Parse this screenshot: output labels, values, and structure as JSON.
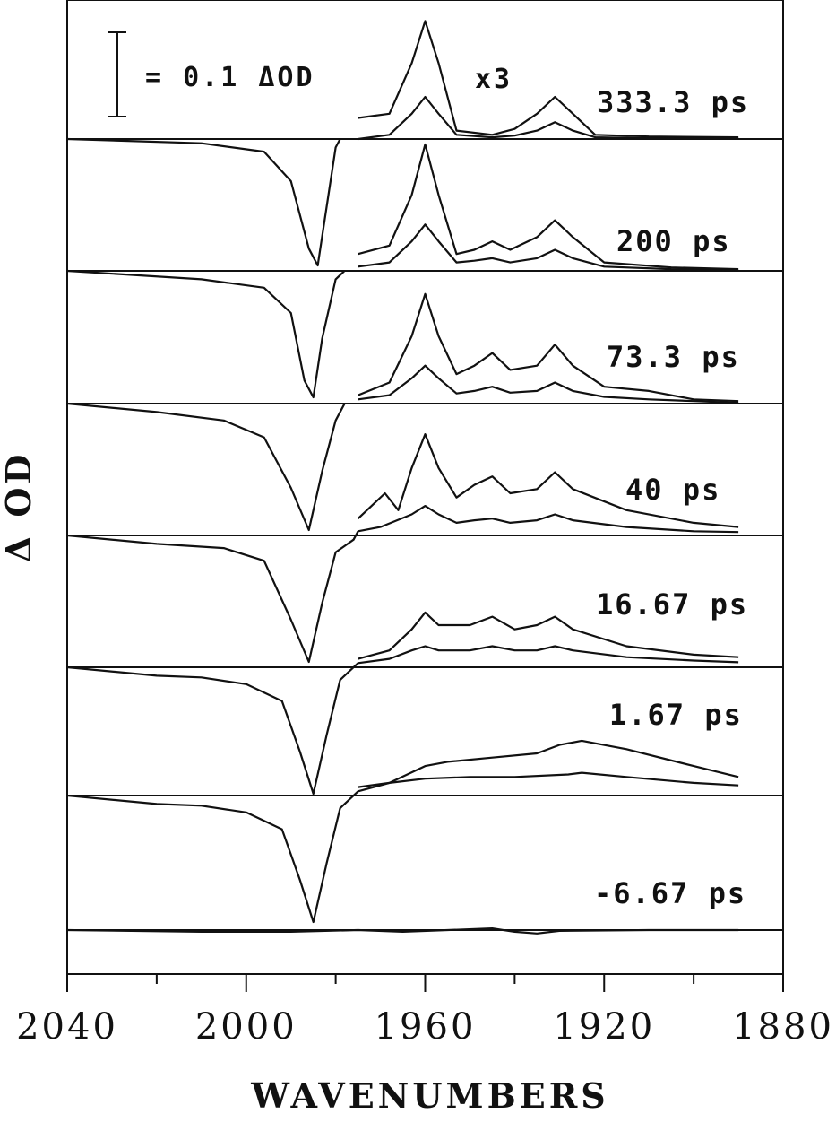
{
  "chart_data": {
    "type": "line",
    "title": "",
    "xlabel": "WAVENUMBERS",
    "ylabel": "Δ OD",
    "xlim": [
      2040,
      1880
    ],
    "x_reversed": true,
    "xticks": [
      2040,
      2000,
      1960,
      1920,
      1880
    ],
    "xtick_labels": [
      "2040",
      "2000",
      "1960",
      "1920",
      "1880"
    ],
    "scale_bar": {
      "label": "= 0.1 ΔOD",
      "value": 0.1
    },
    "magnification_label": "x3",
    "grid": false,
    "series": [
      {
        "name": "333.3 ps",
        "bleach": [
          [
            2040,
            0
          ],
          [
            2010,
            0
          ],
          [
            1996,
            -0.01
          ],
          [
            1990,
            -0.05
          ],
          [
            1986,
            -0.13
          ],
          [
            1984,
            -0.15
          ],
          [
            1982,
            -0.08
          ],
          [
            1980,
            -0.01
          ],
          [
            1979,
            0
          ]
        ],
        "transient": [
          [
            1975,
            0
          ],
          [
            1968,
            0.005
          ],
          [
            1963,
            0.03
          ],
          [
            1960,
            0.05
          ],
          [
            1957,
            0.03
          ],
          [
            1953,
            0.005
          ],
          [
            1945,
            0.002
          ],
          [
            1940,
            0.004
          ],
          [
            1935,
            0.01
          ],
          [
            1931,
            0.02
          ],
          [
            1927,
            0.01
          ],
          [
            1922,
            0.002
          ],
          [
            1910,
            0.001
          ],
          [
            1890,
            0.001
          ]
        ],
        "transient_x3": [
          [
            1975,
            0.025
          ],
          [
            1968,
            0.03
          ],
          [
            1963,
            0.09
          ],
          [
            1960,
            0.14
          ],
          [
            1957,
            0.09
          ],
          [
            1953,
            0.01
          ],
          [
            1945,
            0.005
          ],
          [
            1940,
            0.012
          ],
          [
            1935,
            0.03
          ],
          [
            1931,
            0.05
          ],
          [
            1927,
            0.03
          ],
          [
            1922,
            0.005
          ],
          [
            1910,
            0.003
          ],
          [
            1890,
            0.002
          ]
        ]
      },
      {
        "name": "200 ps",
        "bleach": [
          [
            2040,
            0
          ],
          [
            2010,
            -0.005
          ],
          [
            1996,
            -0.015
          ],
          [
            1990,
            -0.05
          ],
          [
            1986,
            -0.13
          ],
          [
            1984,
            -0.15
          ],
          [
            1982,
            -0.08
          ],
          [
            1980,
            -0.01
          ],
          [
            1979,
            0
          ]
        ],
        "transient": [
          [
            1975,
            0.005
          ],
          [
            1968,
            0.01
          ],
          [
            1963,
            0.035
          ],
          [
            1960,
            0.055
          ],
          [
            1957,
            0.035
          ],
          [
            1953,
            0.01
          ],
          [
            1949,
            0.012
          ],
          [
            1945,
            0.015
          ],
          [
            1941,
            0.01
          ],
          [
            1935,
            0.015
          ],
          [
            1931,
            0.025
          ],
          [
            1927,
            0.015
          ],
          [
            1920,
            0.005
          ],
          [
            1905,
            0.002
          ],
          [
            1890,
            0.001
          ]
        ],
        "transient_x3": [
          [
            1975,
            0.02
          ],
          [
            1968,
            0.03
          ],
          [
            1963,
            0.09
          ],
          [
            1960,
            0.15
          ],
          [
            1957,
            0.09
          ],
          [
            1953,
            0.02
          ],
          [
            1949,
            0.025
          ],
          [
            1945,
            0.035
          ],
          [
            1941,
            0.025
          ],
          [
            1935,
            0.04
          ],
          [
            1931,
            0.06
          ],
          [
            1927,
            0.04
          ],
          [
            1920,
            0.01
          ],
          [
            1905,
            0.004
          ],
          [
            1890,
            0.002
          ]
        ]
      },
      {
        "name": "73.3 ps",
        "bleach": [
          [
            2040,
            0
          ],
          [
            2010,
            -0.01
          ],
          [
            1996,
            -0.02
          ],
          [
            1990,
            -0.05
          ],
          [
            1987,
            -0.13
          ],
          [
            1985,
            -0.15
          ],
          [
            1983,
            -0.08
          ],
          [
            1980,
            -0.01
          ],
          [
            1978,
            0
          ]
        ],
        "transient": [
          [
            1975,
            0.005
          ],
          [
            1968,
            0.01
          ],
          [
            1963,
            0.03
          ],
          [
            1960,
            0.045
          ],
          [
            1957,
            0.03
          ],
          [
            1953,
            0.012
          ],
          [
            1949,
            0.015
          ],
          [
            1945,
            0.02
          ],
          [
            1941,
            0.013
          ],
          [
            1935,
            0.015
          ],
          [
            1931,
            0.025
          ],
          [
            1927,
            0.015
          ],
          [
            1920,
            0.008
          ],
          [
            1910,
            0.005
          ],
          [
            1900,
            0.003
          ],
          [
            1890,
            0.001
          ]
        ],
        "transient_x3": [
          [
            1975,
            0.01
          ],
          [
            1968,
            0.025
          ],
          [
            1963,
            0.08
          ],
          [
            1960,
            0.13
          ],
          [
            1957,
            0.08
          ],
          [
            1953,
            0.035
          ],
          [
            1949,
            0.045
          ],
          [
            1945,
            0.06
          ],
          [
            1941,
            0.04
          ],
          [
            1935,
            0.045
          ],
          [
            1931,
            0.07
          ],
          [
            1927,
            0.045
          ],
          [
            1920,
            0.02
          ],
          [
            1910,
            0.015
          ],
          [
            1900,
            0.005
          ],
          [
            1890,
            0.003
          ]
        ]
      },
      {
        "name": "40 ps",
        "bleach": [
          [
            2040,
            0
          ],
          [
            2020,
            -0.01
          ],
          [
            2005,
            -0.02
          ],
          [
            1996,
            -0.04
          ],
          [
            1990,
            -0.1
          ],
          [
            1986,
            -0.15
          ],
          [
            1983,
            -0.08
          ],
          [
            1980,
            -0.02
          ],
          [
            1978,
            0
          ]
        ],
        "transient": [
          [
            1975,
            0.005
          ],
          [
            1970,
            0.01
          ],
          [
            1963,
            0.025
          ],
          [
            1960,
            0.035
          ],
          [
            1957,
            0.025
          ],
          [
            1953,
            0.015
          ],
          [
            1949,
            0.018
          ],
          [
            1945,
            0.02
          ],
          [
            1941,
            0.015
          ],
          [
            1935,
            0.018
          ],
          [
            1931,
            0.025
          ],
          [
            1927,
            0.018
          ],
          [
            1915,
            0.01
          ],
          [
            1900,
            0.005
          ],
          [
            1890,
            0.004
          ]
        ],
        "transient_x3": [
          [
            1975,
            0.02
          ],
          [
            1973,
            0.03
          ],
          [
            1969,
            0.05
          ],
          [
            1966,
            0.03
          ],
          [
            1963,
            0.08
          ],
          [
            1960,
            0.12
          ],
          [
            1957,
            0.08
          ],
          [
            1953,
            0.045
          ],
          [
            1949,
            0.06
          ],
          [
            1945,
            0.07
          ],
          [
            1941,
            0.05
          ],
          [
            1935,
            0.055
          ],
          [
            1931,
            0.075
          ],
          [
            1927,
            0.055
          ],
          [
            1915,
            0.03
          ],
          [
            1900,
            0.015
          ],
          [
            1890,
            0.01
          ]
        ]
      },
      {
        "name": "16.67 ps",
        "bleach": [
          [
            2040,
            0
          ],
          [
            2020,
            -0.01
          ],
          [
            2005,
            -0.015
          ],
          [
            1996,
            -0.03
          ],
          [
            1990,
            -0.1
          ],
          [
            1986,
            -0.15
          ],
          [
            1983,
            -0.08
          ],
          [
            1980,
            -0.02
          ],
          [
            1976,
            -0.005
          ],
          [
            1975,
            0.005
          ]
        ],
        "transient": [
          [
            1975,
            0.005
          ],
          [
            1968,
            0.01
          ],
          [
            1963,
            0.02
          ],
          [
            1960,
            0.025
          ],
          [
            1957,
            0.02
          ],
          [
            1950,
            0.02
          ],
          [
            1945,
            0.025
          ],
          [
            1940,
            0.02
          ],
          [
            1935,
            0.02
          ],
          [
            1931,
            0.025
          ],
          [
            1927,
            0.02
          ],
          [
            1915,
            0.012
          ],
          [
            1900,
            0.008
          ],
          [
            1890,
            0.006
          ]
        ],
        "transient_x3": [
          [
            1975,
            0.01
          ],
          [
            1968,
            0.02
          ],
          [
            1963,
            0.045
          ],
          [
            1960,
            0.065
          ],
          [
            1957,
            0.05
          ],
          [
            1950,
            0.05
          ],
          [
            1945,
            0.06
          ],
          [
            1940,
            0.045
          ],
          [
            1935,
            0.05
          ],
          [
            1931,
            0.06
          ],
          [
            1927,
            0.045
          ],
          [
            1915,
            0.025
          ],
          [
            1900,
            0.015
          ],
          [
            1890,
            0.012
          ]
        ]
      },
      {
        "name": "1.67 ps",
        "bleach": [
          [
            2040,
            0
          ],
          [
            2020,
            -0.01
          ],
          [
            2010,
            -0.012
          ],
          [
            2000,
            -0.02
          ],
          [
            1992,
            -0.04
          ],
          [
            1988,
            -0.1
          ],
          [
            1985,
            -0.15
          ],
          [
            1982,
            -0.08
          ],
          [
            1979,
            -0.015
          ],
          [
            1975,
            0.005
          ]
        ],
        "transient": [
          [
            1975,
            0.01
          ],
          [
            1968,
            0.015
          ],
          [
            1960,
            0.02
          ],
          [
            1950,
            0.022
          ],
          [
            1940,
            0.022
          ],
          [
            1928,
            0.025
          ],
          [
            1925,
            0.027
          ],
          [
            1915,
            0.022
          ],
          [
            1900,
            0.015
          ],
          [
            1890,
            0.012
          ]
        ],
        "transient_x3": [
          [
            1975,
            0.005
          ],
          [
            1968,
            0.015
          ],
          [
            1960,
            0.035
          ],
          [
            1955,
            0.04
          ],
          [
            1945,
            0.045
          ],
          [
            1935,
            0.05
          ],
          [
            1930,
            0.06
          ],
          [
            1925,
            0.065
          ],
          [
            1915,
            0.055
          ],
          [
            1900,
            0.035
          ],
          [
            1890,
            0.022
          ]
        ]
      },
      {
        "name": "-6.67 ps",
        "baseline_signal": [
          [
            2040,
            0
          ],
          [
            2010,
            -0.002
          ],
          [
            1990,
            -0.002
          ],
          [
            1975,
            0
          ],
          [
            1965,
            -0.002
          ],
          [
            1955,
            0
          ],
          [
            1945,
            0.002
          ],
          [
            1940,
            -0.002
          ],
          [
            1935,
            -0.004
          ],
          [
            1930,
            -0.001
          ],
          [
            1910,
            0
          ],
          [
            1890,
            0
          ]
        ]
      }
    ]
  }
}
